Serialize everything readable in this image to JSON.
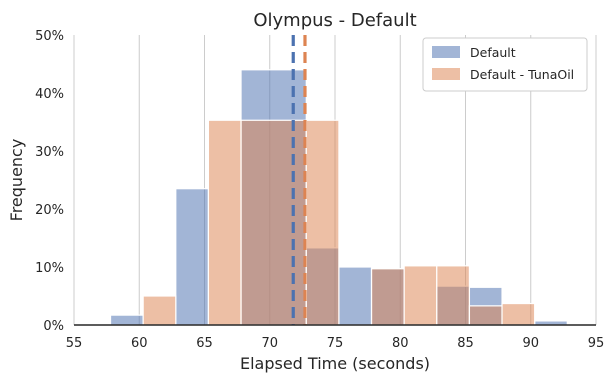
{
  "chart_data": {
    "type": "bar",
    "title": "Olympus - Default",
    "xlabel": "Elapsed Time (seconds)",
    "ylabel": "Frequency",
    "xlim": [
      55,
      95
    ],
    "ylim": [
      0,
      50
    ],
    "xticks": [
      55,
      60,
      65,
      70,
      75,
      80,
      85,
      90,
      95
    ],
    "xtick_labels": [
      "55",
      "60",
      "65",
      "70",
      "75",
      "80",
      "85",
      "90",
      "95"
    ],
    "yticks": [
      0,
      10,
      20,
      30,
      40,
      50
    ],
    "ytick_labels": [
      "0%",
      "10%",
      "20%",
      "30%",
      "40%",
      "50%"
    ],
    "grid": "vertical",
    "legend_position": "top-right",
    "series": [
      {
        "name": "Default",
        "color": "#4c72b0",
        "mean": 71.8,
        "bins": [
          {
            "x0": 57.8,
            "x1": 60.3,
            "value": 1.7
          },
          {
            "x0": 62.8,
            "x1": 65.3,
            "value": 23.5
          },
          {
            "x0": 67.8,
            "x1": 72.8,
            "value": 44.0
          },
          {
            "x0": 72.8,
            "x1": 75.3,
            "value": 13.3
          },
          {
            "x0": 75.3,
            "x1": 77.8,
            "value": 10.0
          },
          {
            "x0": 77.8,
            "x1": 80.3,
            "value": 9.7
          },
          {
            "x0": 82.8,
            "x1": 85.3,
            "value": 6.7
          },
          {
            "x0": 85.3,
            "x1": 87.8,
            "value": 6.5
          },
          {
            "x0": 90.3,
            "x1": 92.8,
            "value": 0.7
          }
        ]
      },
      {
        "name": "Default - TunaOil",
        "color": "#dd8452",
        "mean": 72.7,
        "bins": [
          {
            "x0": 60.3,
            "x1": 62.8,
            "value": 5.0
          },
          {
            "x0": 65.3,
            "x1": 67.8,
            "value": 35.3
          },
          {
            "x0": 67.8,
            "x1": 72.8,
            "value": 35.3
          },
          {
            "x0": 72.8,
            "x1": 75.3,
            "value": 35.3
          },
          {
            "x0": 77.8,
            "x1": 80.3,
            "value": 9.7
          },
          {
            "x0": 80.3,
            "x1": 82.8,
            "value": 10.2
          },
          {
            "x0": 82.8,
            "x1": 85.3,
            "value": 10.2
          },
          {
            "x0": 85.3,
            "x1": 87.8,
            "value": 3.3
          },
          {
            "x0": 87.8,
            "x1": 90.3,
            "value": 3.7
          }
        ]
      }
    ]
  }
}
